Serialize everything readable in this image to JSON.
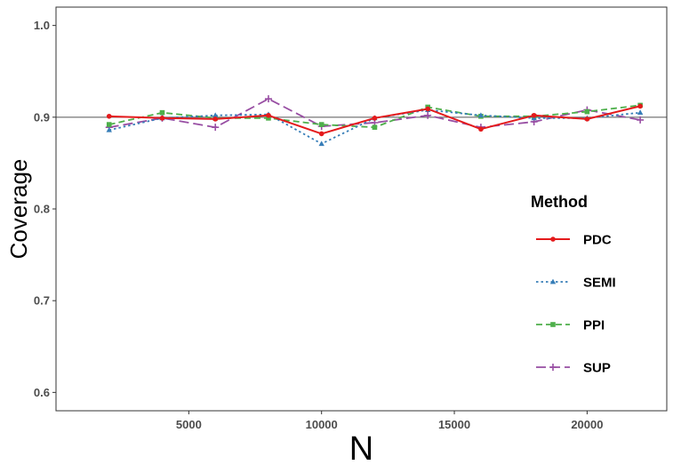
{
  "chart_data": {
    "type": "line",
    "title": "",
    "xlabel": "N",
    "ylabel": "Coverage",
    "xlim": [
      0,
      23000
    ],
    "ylim": [
      0.58,
      1.02
    ],
    "x_ticks": [
      5000,
      10000,
      15000,
      20000
    ],
    "x_tick_labels": [
      "5000",
      "10000",
      "15000",
      "20000"
    ],
    "y_ticks": [
      0.6,
      0.7,
      0.8,
      0.9,
      1.0
    ],
    "y_tick_labels": [
      "0.6",
      "0.7",
      "0.8",
      "0.9",
      "1.0"
    ],
    "reference_line": 0.9,
    "grid": false,
    "legend": {
      "title": "Method",
      "position": "right"
    },
    "x": [
      2000,
      4000,
      6000,
      8000,
      10000,
      12000,
      14000,
      16000,
      18000,
      20000,
      22000
    ],
    "series": [
      {
        "name": "PDC",
        "color": "#e41a1c",
        "style": "solid",
        "marker": "circle",
        "values": [
          0.901,
          0.899,
          0.898,
          0.902,
          0.882,
          0.899,
          0.909,
          0.887,
          0.902,
          0.898,
          0.912
        ]
      },
      {
        "name": "SEMI",
        "color": "#377eb8",
        "style": "dotted",
        "marker": "triangle",
        "values": [
          0.886,
          0.899,
          0.902,
          0.903,
          0.871,
          0.899,
          0.908,
          0.902,
          0.899,
          0.899,
          0.905
        ]
      },
      {
        "name": "PPI",
        "color": "#4daf4a",
        "style": "dashed",
        "marker": "square",
        "values": [
          0.892,
          0.905,
          0.899,
          0.899,
          0.892,
          0.889,
          0.911,
          0.901,
          0.901,
          0.906,
          0.913
        ]
      },
      {
        "name": "SUP",
        "color": "#984ea3",
        "style": "longdash",
        "marker": "plus",
        "values": [
          0.889,
          0.899,
          0.889,
          0.92,
          0.89,
          0.894,
          0.902,
          0.889,
          0.895,
          0.908,
          0.897
        ]
      }
    ]
  }
}
